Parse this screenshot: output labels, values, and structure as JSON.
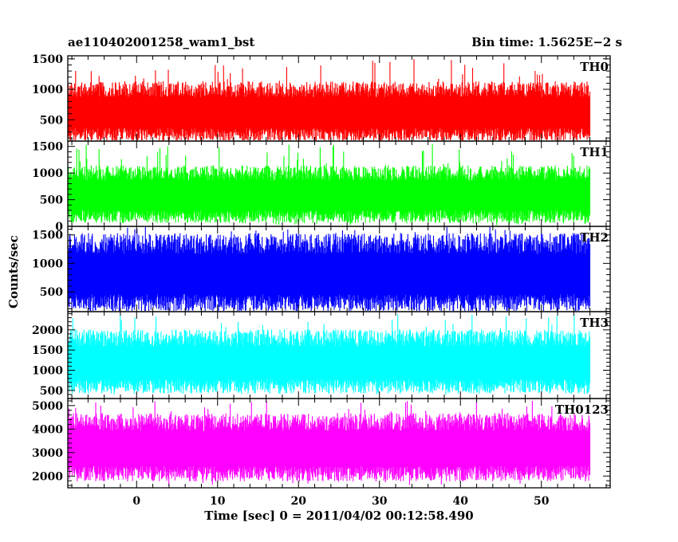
{
  "header": {
    "left_title": "ae110402001258_wam1_bst",
    "right_title": "Bin time: 1.5625E−2 s"
  },
  "ylabel": "Counts/sec",
  "xlabel": "Time [sec] 0 = 2011/04/02 00:12:58.490",
  "chart_data": [
    {
      "type": "area",
      "name": "TH0",
      "color": "#ff0000",
      "x_range": [
        -8.5,
        56
      ],
      "ylim": [
        150,
        1550
      ],
      "yticks": [
        500,
        1000,
        1500
      ],
      "typical_min": 250,
      "typical_max": 1000,
      "peak_max": 1500,
      "dip_min": 170
    },
    {
      "type": "area",
      "name": "TH1",
      "color": "#00ff00",
      "x_range": [
        -8.5,
        56
      ],
      "ylim": [
        0,
        1600
      ],
      "yticks": [
        0,
        500,
        1000,
        1500
      ],
      "typical_min": 180,
      "typical_max": 1000,
      "peak_max": 1550,
      "dip_min": 20
    },
    {
      "type": "area",
      "name": "TH2",
      "color": "#0000ff",
      "x_range": [
        -8.5,
        56
      ],
      "ylim": [
        150,
        1650
      ],
      "yticks": [
        500,
        1000,
        1500
      ],
      "typical_min": 300,
      "typical_max": 1350,
      "peak_max": 1650,
      "dip_min": 150
    },
    {
      "type": "area",
      "name": "TH3",
      "color": "#00ffff",
      "x_range": [
        -8.5,
        56
      ],
      "ylim": [
        300,
        2450
      ],
      "yticks": [
        500,
        1000,
        1500,
        2000
      ],
      "typical_min": 600,
      "typical_max": 1800,
      "peak_max": 2400,
      "dip_min": 400
    },
    {
      "type": "area",
      "name": "TH0123",
      "color": "#ff00ff",
      "x_range": [
        -8.5,
        56
      ],
      "ylim": [
        1500,
        5300
      ],
      "yticks": [
        2000,
        3000,
        4000,
        5000
      ],
      "typical_min": 2100,
      "typical_max": 4300,
      "peak_max": 5200,
      "dip_min": 1600
    }
  ],
  "x_axis": {
    "xlim": [
      -8.5,
      58.5
    ],
    "ticks": [
      0,
      10,
      20,
      30,
      40,
      50
    ],
    "tick_labels": [
      "0",
      "10",
      "20",
      "30",
      "40",
      "50"
    ]
  }
}
